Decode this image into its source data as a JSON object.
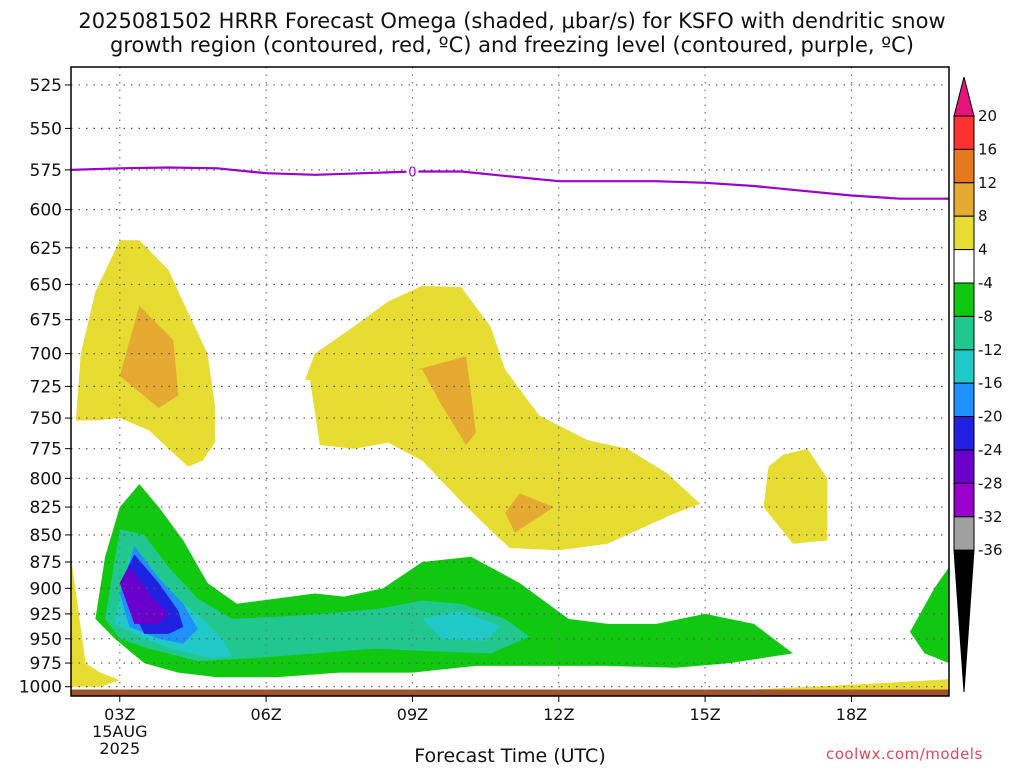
{
  "title_line1": "2025081502 HRRR Forecast Omega (shaded, μbar/s) for KSFO with dendritic snow",
  "title_line2": "growth region (contoured, red, ºC) and freezing level (contoured, purple, ºC)",
  "xlabel": "Forecast Time (UTC)",
  "watermark": "coolwx.com/models",
  "freezing_level_label": "0",
  "colors": {
    "purple_line": "#9900cc",
    "ground": "#a0522d",
    "colorbar": [
      "#000000",
      "#a0a0a0",
      "#9900cc",
      "#6a00cc",
      "#2020e0",
      "#1e90ff",
      "#20c8c8",
      "#20c890",
      "#10c810",
      "#ffffff",
      "#e6dc32",
      "#e6aa32",
      "#e6781e",
      "#ff3232",
      "#e6147c"
    ]
  },
  "chart_data": {
    "type": "heatmap",
    "title": "2025081502 HRRR Forecast Omega (shaded, μbar/s) for KSFO with dendritic snow growth region (contoured, red, ºC) and freezing level (contoured, purple, ºC)",
    "xlabel": "Forecast Time (UTC)",
    "ylabel": "",
    "x_tick_labels": [
      "03Z",
      "06Z",
      "09Z",
      "12Z",
      "15Z",
      "18Z"
    ],
    "x_tick_hours": [
      3,
      6,
      9,
      12,
      15,
      18
    ],
    "x_range_hours": [
      2,
      20
    ],
    "date_label": [
      "15AUG",
      "2025"
    ],
    "y_tick_labels": [
      "525",
      "550",
      "575",
      "600",
      "625",
      "650",
      "675",
      "700",
      "725",
      "750",
      "775",
      "800",
      "825",
      "850",
      "875",
      "900",
      "925",
      "950",
      "975",
      "1000"
    ],
    "y_range_hPa": [
      515,
      1010
    ],
    "y_scale": "log",
    "grid": true,
    "colorbar_levels": [
      "20",
      "16",
      "12",
      "8",
      "4",
      "-4",
      "-8",
      "-12",
      "-16",
      "-20",
      "-24",
      "-28",
      "-32",
      "-36"
    ],
    "freezing_level": {
      "value_label": "0",
      "hours": [
        2,
        3,
        4,
        5,
        6,
        7,
        8,
        9,
        10,
        11,
        12,
        13,
        14,
        15,
        16,
        17,
        18,
        19,
        20
      ],
      "pressure_hPa": [
        575,
        574,
        573.5,
        574,
        577,
        578,
        577,
        576,
        576,
        579,
        582,
        582,
        582,
        583,
        585,
        588,
        591,
        593,
        593
      ]
    },
    "omega_regions": [
      {
        "level": "4 to 8",
        "hours": [
          2.1,
          2.2,
          2.5,
          3.0,
          3.4,
          4.0,
          4.4,
          4.8,
          4.95,
          4.95,
          4.7,
          4.4,
          4.0,
          3.6,
          3.0,
          2.5,
          2.1
        ],
        "pressure_hPa": [
          752,
          700,
          655,
          620,
          620,
          640,
          670,
          700,
          740,
          770,
          785,
          790,
          775,
          760,
          750,
          752,
          752
        ]
      },
      {
        "level": "8 to 12",
        "hours": [
          3.0,
          3.4,
          4.1,
          4.2,
          3.8,
          3.0
        ],
        "pressure_hPa": [
          717,
          665,
          690,
          732,
          742,
          717
        ]
      },
      {
        "level": "4 to 8",
        "hours": [
          6.8,
          7.0,
          7.8,
          8.5,
          9.2,
          10.0,
          10.6,
          10.9,
          11.6,
          12.6,
          13.4,
          14.2,
          14.9,
          14.3,
          13.0,
          12.0,
          11.0,
          10.7,
          10.0,
          9.2,
          8.5,
          7.8,
          7.1,
          6.9
        ],
        "pressure_hPa": [
          720,
          700,
          680,
          662,
          651,
          652,
          680,
          712,
          748,
          768,
          775,
          795,
          822,
          832,
          858,
          864,
          862,
          850,
          820,
          785,
          770,
          775,
          772,
          720
        ]
      },
      {
        "level": "8 to 12",
        "hours": [
          9.1,
          10.1,
          10.2,
          10.3,
          10.1,
          9.6,
          9.2
        ],
        "pressure_hPa": [
          712,
          702,
          730,
          762,
          772,
          740,
          712
        ]
      },
      {
        "level": "8 to 12",
        "hours": [
          10.9,
          11.2,
          11.9,
          11.1,
          10.9
        ],
        "pressure_hPa": [
          830,
          813,
          825,
          848,
          830
        ]
      },
      {
        "level": "4 to 8",
        "hours": [
          16.3,
          16.6,
          17.1,
          17.5,
          17.5,
          16.8,
          16.2,
          16.3
        ],
        "pressure_hPa": [
          790,
          780,
          775,
          800,
          855,
          858,
          825,
          790
        ]
      },
      {
        "level": "-8 to -4",
        "hours": [
          2.5,
          2.7,
          3.0,
          3.4,
          3.8,
          4.3,
          4.8,
          5.4,
          6.2,
          7.0,
          7.6,
          8.4,
          9.2,
          10.2,
          11.2,
          12.2,
          13.0,
          14.0,
          15.0,
          16.0,
          16.8,
          15.5,
          14.4,
          13.0,
          11.7,
          10.3,
          9.0,
          7.5,
          6.2,
          5.0,
          4.2,
          3.5,
          2.9,
          2.5
        ],
        "pressure_hPa": [
          930,
          870,
          825,
          805,
          825,
          855,
          895,
          915,
          910,
          905,
          908,
          900,
          875,
          870,
          895,
          930,
          935,
          935,
          925,
          935,
          965,
          975,
          980,
          978,
          978,
          978,
          985,
          985,
          990,
          990,
          985,
          975,
          950,
          930
        ]
      },
      {
        "level": "-12 to -8",
        "hours": [
          2.7,
          3.0,
          3.5,
          4.0,
          4.6,
          5.3,
          6.2,
          7.2,
          8.3,
          9.2,
          10.0,
          10.9,
          11.4,
          10.6,
          9.5,
          8.2,
          7.0,
          5.7,
          4.6,
          3.6,
          3.0,
          2.7
        ],
        "pressure_hPa": [
          930,
          845,
          850,
          880,
          910,
          930,
          928,
          925,
          920,
          912,
          915,
          930,
          948,
          965,
          963,
          960,
          965,
          970,
          973,
          960,
          950,
          930
        ]
      },
      {
        "level": "-16 to -12",
        "hours": [
          2.9,
          3.2,
          3.6,
          4.1,
          4.7,
          5.1,
          5.3,
          4.9,
          4.2,
          3.5,
          2.9,
          2.9
        ],
        "pressure_hPa": [
          930,
          870,
          880,
          908,
          930,
          950,
          968,
          970,
          962,
          950,
          935,
          930
        ]
      },
      {
        "level": "-16 to -12",
        "hours": [
          9.2,
          10.0,
          10.8,
          10.5,
          9.6,
          9.2
        ],
        "pressure_hPa": [
          930,
          922,
          937,
          952,
          950,
          930
        ]
      },
      {
        "level": "-20 to -16",
        "hours": [
          3.0,
          3.3,
          3.8,
          4.3,
          4.6,
          4.3,
          3.8,
          3.2,
          3.0
        ],
        "pressure_hPa": [
          905,
          860,
          890,
          915,
          940,
          955,
          950,
          938,
          905
        ]
      },
      {
        "level": "-24 to -20",
        "hours": [
          3.0,
          3.3,
          3.8,
          4.2,
          4.3,
          4.0,
          3.5,
          3.0
        ],
        "pressure_hPa": [
          895,
          868,
          895,
          922,
          938,
          945,
          945,
          895
        ]
      },
      {
        "level": "-28 to -24",
        "hours": [
          3.0,
          3.2,
          3.6,
          4.0,
          3.8,
          3.3,
          3.0
        ],
        "pressure_hPa": [
          895,
          880,
          905,
          925,
          935,
          935,
          895
        ]
      },
      {
        "level": "-8 to -4",
        "hours": [
          20,
          19.7,
          19.2,
          19.5,
          20
        ],
        "pressure_hPa": [
          880,
          900,
          943,
          965,
          975
        ]
      },
      {
        "level": "4 to 8",
        "hours": [
          2,
          2.3,
          2.6,
          3.0,
          2.6,
          2.0
        ],
        "pressure_hPa": [
          870,
          975,
          985,
          993,
          1000,
          1000
        ]
      },
      {
        "level": "4 to 8",
        "hours": [
          16,
          18,
          20,
          20,
          16
        ],
        "pressure_hPa": [
          1003,
          998,
          992,
          1003,
          1003
        ]
      }
    ]
  }
}
